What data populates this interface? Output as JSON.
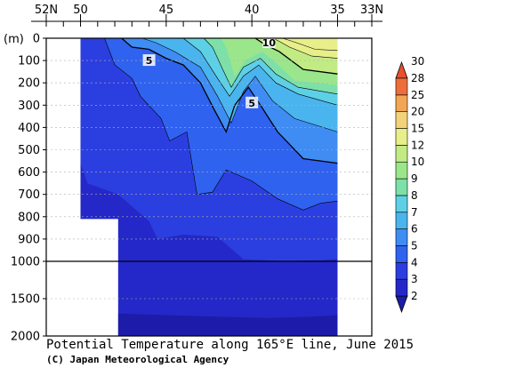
{
  "chart_data": {
    "type": "heatmap",
    "title": "Potential Temperature along 165°E line, June 2015",
    "credit": "(C) Japan Meteorological Agency",
    "y_unit_label": "(m)",
    "x_axis": {
      "tick_labels_top": [
        "52N",
        "50",
        "45",
        "40",
        "35",
        "33N"
      ],
      "tick_values": [
        52,
        50,
        45,
        40,
        35,
        33
      ],
      "range": [
        52,
        33
      ]
    },
    "y_axis": {
      "tick_labels": [
        "0",
        "100",
        "200",
        "300",
        "400",
        "500",
        "600",
        "700",
        "800",
        "900",
        "1000",
        "1500",
        "2000"
      ],
      "tick_values": [
        0,
        100,
        200,
        300,
        400,
        500,
        600,
        700,
        800,
        900,
        1000,
        1500,
        2000
      ],
      "range": [
        0,
        2000
      ],
      "break_depth": 1000
    },
    "colorbar": {
      "levels": [
        "2",
        "3",
        "4",
        "5",
        "6",
        "7",
        "8",
        "9",
        "10",
        "12",
        "15",
        "20",
        "25",
        "28",
        "30"
      ],
      "colors": [
        "#1c1ca8",
        "#2428c8",
        "#2b3fe0",
        "#2f62ef",
        "#3f8cf2",
        "#4ab4ee",
        "#5dd0e6",
        "#7de0a8",
        "#9be68a",
        "#c2ec83",
        "#e8ee8a",
        "#f2d37a",
        "#f2a655",
        "#ee6e3a",
        "#e8502e"
      ]
    },
    "contour_labels": [
      {
        "text": "5",
        "lat": 46.0,
        "depth": 100
      },
      {
        "text": "10",
        "lat": 39.0,
        "depth": 20
      },
      {
        "text": "5",
        "lat": 40.0,
        "depth": 290
      }
    ],
    "data_extent": {
      "lat_north": 50.0,
      "lat_south": 35.0,
      "deep_section_north_lat": 47.8
    }
  }
}
